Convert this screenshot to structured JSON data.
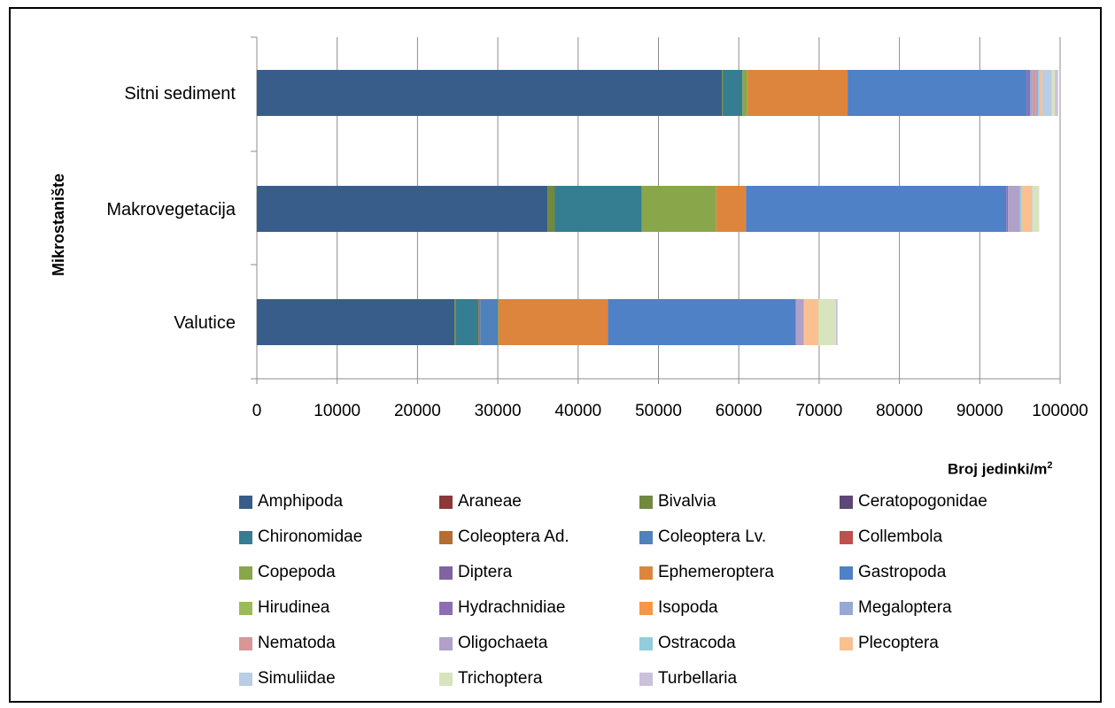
{
  "chart_data": {
    "type": "bar",
    "orientation": "horizontal",
    "stacked": true,
    "categories": [
      "Sitni sediment",
      "Makrovegetacija",
      "Valutice"
    ],
    "xlabel": "Broj jedinki/m²",
    "xlabel_main": "Broj jedinki/m",
    "xlabel_sup": "2",
    "ylabel": "Mikrostanište",
    "xlim": [
      0,
      100000
    ],
    "xticks": [
      "0",
      "10000",
      "20000",
      "30000",
      "40000",
      "50000",
      "60000",
      "70000",
      "80000",
      "90000",
      "100000"
    ],
    "grid": "vertical",
    "legend_position": "bottom",
    "series": [
      {
        "name": "Amphipoda",
        "color": "#385d8a",
        "values": [
          57900,
          36200,
          24600
        ]
      },
      {
        "name": "Araneae",
        "color": "#8c3836",
        "values": [
          0,
          0,
          0
        ]
      },
      {
        "name": "Bivalvia",
        "color": "#71893f",
        "values": [
          150,
          900,
          200
        ]
      },
      {
        "name": "Ceratopogonidae",
        "color": "#5c4776",
        "values": [
          0,
          0,
          0
        ]
      },
      {
        "name": "Chironomidae",
        "color": "#357d91",
        "values": [
          2400,
          10800,
          2800
        ]
      },
      {
        "name": "Coleoptera Ad.",
        "color": "#b66d31",
        "values": [
          0,
          0,
          200
        ]
      },
      {
        "name": "Coleoptera Lv.",
        "color": "#4f81bd",
        "values": [
          0,
          0,
          2200
        ]
      },
      {
        "name": "Collembola",
        "color": "#c0504d",
        "values": [
          0,
          0,
          0
        ]
      },
      {
        "name": "Copepoda",
        "color": "#8aa64a",
        "values": [
          600,
          9300,
          100
        ]
      },
      {
        "name": "Diptera",
        "color": "#8064a2",
        "values": [
          0,
          0,
          0
        ]
      },
      {
        "name": "Ephemeroptera",
        "color": "#dd853d",
        "values": [
          12500,
          3700,
          13600
        ]
      },
      {
        "name": "Gastropoda",
        "color": "#4f81c6",
        "values": [
          22300,
          32400,
          23400
        ]
      },
      {
        "name": "Hirudinea",
        "color": "#9bbb59",
        "values": [
          0,
          0,
          0
        ]
      },
      {
        "name": "Hydrachnidiae",
        "color": "#8d6eb2",
        "values": [
          400,
          200,
          0
        ]
      },
      {
        "name": "Isopoda",
        "color": "#f79646",
        "values": [
          0,
          0,
          0
        ]
      },
      {
        "name": "Megaloptera",
        "color": "#95a9d4",
        "values": [
          300,
          0,
          0
        ]
      },
      {
        "name": "Nematoda",
        "color": "#d99694",
        "values": [
          400,
          0,
          0
        ]
      },
      {
        "name": "Oligochaeta",
        "color": "#b1a0c7",
        "values": [
          300,
          1500,
          1000
        ]
      },
      {
        "name": "Ostracoda",
        "color": "#93cddd",
        "values": [
          200,
          200,
          0
        ]
      },
      {
        "name": "Plecoptera",
        "color": "#fac090",
        "values": [
          300,
          1300,
          1800
        ]
      },
      {
        "name": "Simuliidae",
        "color": "#b9cde5",
        "values": [
          1200,
          100,
          0
        ]
      },
      {
        "name": "Trichoptera",
        "color": "#d7e4bd",
        "values": [
          400,
          800,
          2200
        ]
      },
      {
        "name": "Turbellaria",
        "color": "#ccc1da",
        "values": [
          400,
          0,
          200
        ]
      }
    ]
  }
}
